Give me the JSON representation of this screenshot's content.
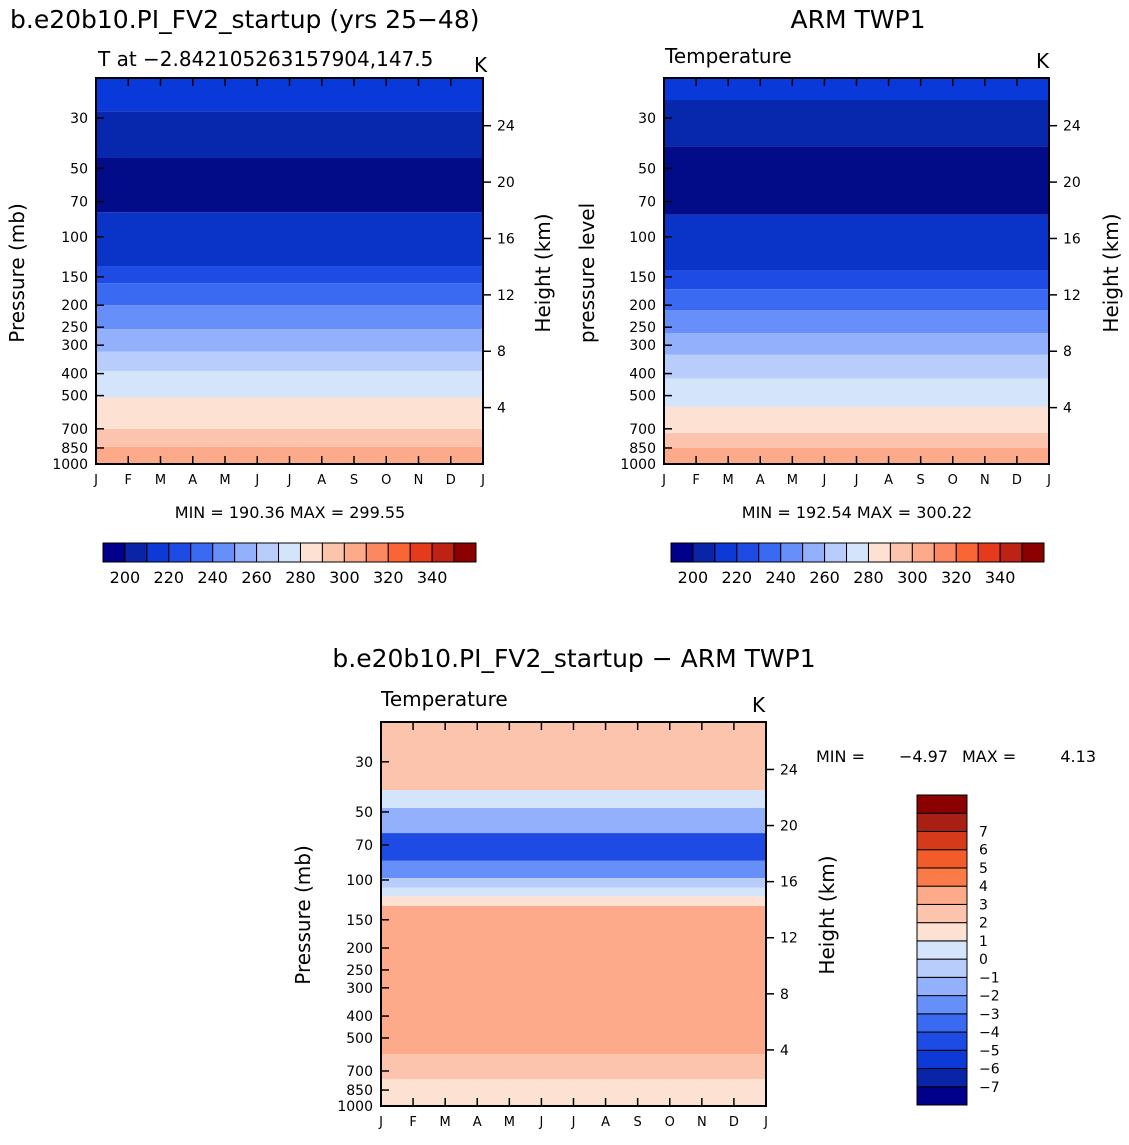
{
  "chart_data": [
    {
      "id": "model",
      "type": "contour",
      "title": "b.e20b10.PI_FV2_startup (yrs 25−48)",
      "subtitle": "T at −2.842105263157904,147.5",
      "units": "K",
      "ylabel": "Pressure (mb)",
      "y2label": "Height (km)",
      "months": [
        "J",
        "F",
        "M",
        "A",
        "M",
        "J",
        "J",
        "A",
        "S",
        "O",
        "N",
        "D",
        "J"
      ],
      "pressure_ticks": [
        30,
        50,
        70,
        100,
        150,
        200,
        250,
        300,
        400,
        500,
        700,
        850,
        1000
      ],
      "height_ticks": [
        4,
        8,
        12,
        16,
        20,
        24
      ],
      "stats": "MIN = 190.36 MAX = 299.55",
      "levels": [
        200,
        210,
        220,
        230,
        240,
        250,
        260,
        270,
        280,
        290,
        300,
        310,
        320,
        330,
        340
      ],
      "colorbar_labels": [
        "200",
        "220",
        "240",
        "260",
        "280",
        "300",
        "320",
        "340"
      ],
      "band_pressures": [
        1000,
        840,
        700,
        510,
        390,
        320,
        255,
        200,
        160,
        135,
        78,
        45,
        28,
        20
      ],
      "band_colors": [
        "#fcaa89",
        "#fcc4ad",
        "#fde2d4",
        "#d4e4fb",
        "#b8cdfb",
        "#92b0fb",
        "#678ffa",
        "#3a6af2",
        "#1e4be3",
        "#0a33c7",
        "#030c88",
        "#0728ac",
        "#0a39da"
      ]
    },
    {
      "id": "obs",
      "type": "contour",
      "title": "ARM TWP1",
      "subtitle": "Temperature",
      "units": "K",
      "ylabel": "pressure level",
      "y2label": "Height (km)",
      "months": [
        "J",
        "F",
        "M",
        "A",
        "M",
        "J",
        "J",
        "A",
        "S",
        "O",
        "N",
        "D",
        "J"
      ],
      "pressure_ticks": [
        30,
        50,
        70,
        100,
        150,
        200,
        250,
        300,
        400,
        500,
        700,
        850,
        1000
      ],
      "height_ticks": [
        4,
        8,
        12,
        16,
        20,
        24
      ],
      "stats": "MIN = 192.54 MAX = 300.22",
      "levels": [
        200,
        210,
        220,
        230,
        240,
        250,
        260,
        270,
        280,
        290,
        300,
        310,
        320,
        330,
        340
      ],
      "colorbar_labels": [
        "200",
        "220",
        "240",
        "260",
        "280",
        "300",
        "320",
        "340"
      ],
      "band_pressures": [
        1000,
        850,
        730,
        560,
        420,
        330,
        265,
        210,
        170,
        140,
        80,
        40,
        25,
        20
      ],
      "band_colors": [
        "#fcaa89",
        "#fcc4ad",
        "#fde2d4",
        "#d4e4fb",
        "#b8cdfb",
        "#92b0fb",
        "#678ffa",
        "#3a6af2",
        "#1e4be3",
        "#0a33c7",
        "#030c88",
        "#0728ac",
        "#0a39da"
      ]
    },
    {
      "id": "diff",
      "type": "contour",
      "title": "b.e20b10.PI_FV2_startup − ARM TWP1",
      "subtitle": "Temperature",
      "units": "K",
      "ylabel": "Pressure (mb)",
      "y2label": "Height (km)",
      "months": [
        "J",
        "F",
        "M",
        "A",
        "M",
        "J",
        "J",
        "A",
        "S",
        "O",
        "N",
        "D",
        "J"
      ],
      "pressure_ticks": [
        30,
        50,
        70,
        100,
        150,
        200,
        250,
        300,
        400,
        500,
        700,
        850,
        1000
      ],
      "height_ticks": [
        4,
        8,
        12,
        16,
        20,
        24
      ],
      "stats_min_label": "MIN =",
      "stats_min": "−4.97",
      "stats_max_label": "MAX =",
      "stats_max": "4.13",
      "levels": [
        -7,
        -6,
        -5,
        -4,
        -3,
        -2,
        -1,
        0,
        1,
        2,
        3,
        4,
        5,
        6,
        7
      ],
      "colorbar_labels": [
        "7",
        "6",
        "5",
        "4",
        "3",
        "2",
        "1",
        "0",
        "−1",
        "−2",
        "−3",
        "−4",
        "−5",
        "−6",
        "−7"
      ],
      "band_pressures": [
        1000,
        760,
        590,
        130,
        118,
        108,
        98,
        82,
        62,
        48,
        40,
        20
      ],
      "band_colors": [
        "#fde2d4",
        "#fcc4ad",
        "#fcaa89",
        "#fde2d4",
        "#d4e4fb",
        "#b8cdfb",
        "#678ffa",
        "#1e4be3",
        "#92b0fb",
        "#d4e4fb",
        "#fcc4ad"
      ]
    }
  ],
  "colors": {
    "colorbar_models": [
      "#00008a",
      "#0a24a8",
      "#0d39d6",
      "#1e4be3",
      "#3a6af2",
      "#678ffa",
      "#92b0fb",
      "#b8cdfb",
      "#d4e4fb",
      "#fde2d4",
      "#fcc4ad",
      "#fcaa89",
      "#fc8862",
      "#fa6535",
      "#e53a1b",
      "#bd2214",
      "#8b0000"
    ],
    "colorbar_diff": [
      "#00008a",
      "#0a24a8",
      "#0d39d6",
      "#1e4be3",
      "#3a6af2",
      "#678ffa",
      "#92b0fb",
      "#b8cdfb",
      "#d4e4fb",
      "#fde2d4",
      "#fcc4ad",
      "#fcaa89",
      "#fa7b48",
      "#f25c2a",
      "#d53a1b",
      "#a81f14",
      "#8b0000"
    ]
  }
}
